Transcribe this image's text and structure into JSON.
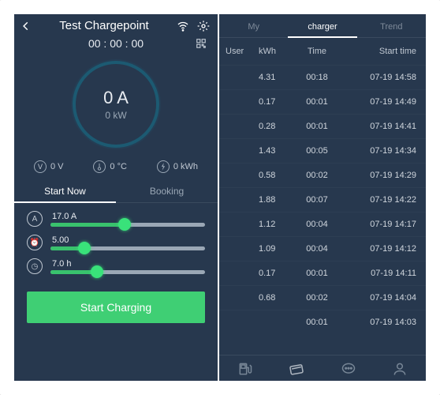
{
  "colors": {
    "panel_bg": "#27384e",
    "accent_green": "#3fcf74",
    "thumb_green": "#39e27a",
    "ring": "#1c5a72",
    "text_primary": "#e8ecf1",
    "text_muted": "#9aa7b5",
    "divider": "#3a4a5e"
  },
  "left": {
    "title": "Test Chargepoint",
    "timer": "00 : 00 : 00",
    "gauge": {
      "amp": "0 A",
      "kw": "0 kW"
    },
    "stats": {
      "volt": "0 V",
      "temp": "0 °C",
      "energy": "0  kWh"
    },
    "tabs": {
      "now": "Start Now",
      "booking": "Booking"
    },
    "sliders": [
      {
        "icon": "A",
        "label": "17.0 A",
        "fill_pct": 48
      },
      {
        "icon": "⏰",
        "label": "5.00",
        "fill_pct": 22
      },
      {
        "icon": "◷",
        "label": "7.0 h",
        "fill_pct": 30
      }
    ],
    "start_button": "Start Charging"
  },
  "right": {
    "toptabs": {
      "my": "My",
      "charger": "charger",
      "trend": "Trend"
    },
    "columns": {
      "user": "User",
      "kwh": "kWh",
      "time": "Time",
      "start": "Start time"
    },
    "rows": [
      {
        "kwh": "4.31",
        "time": "00:18",
        "start": "07-19 14:58"
      },
      {
        "kwh": "0.17",
        "time": "00:01",
        "start": "07-19 14:49"
      },
      {
        "kwh": "0.28",
        "time": "00:01",
        "start": "07-19 14:41"
      },
      {
        "kwh": "1.43",
        "time": "00:05",
        "start": "07-19 14:34"
      },
      {
        "kwh": "0.58",
        "time": "00:02",
        "start": "07-19 14:29"
      },
      {
        "kwh": "1.88",
        "time": "00:07",
        "start": "07-19 14:22"
      },
      {
        "kwh": "1.12",
        "time": "00:04",
        "start": "07-19 14:17"
      },
      {
        "kwh": "1.09",
        "time": "00:04",
        "start": "07-19 14:12"
      },
      {
        "kwh": "0.17",
        "time": "00:01",
        "start": "07-19 14:11"
      },
      {
        "kwh": "0.68",
        "time": "00:02",
        "start": "07-19 14:04"
      },
      {
        "kwh": "",
        "time": "00:01",
        "start": "07-19 14:03"
      }
    ]
  }
}
